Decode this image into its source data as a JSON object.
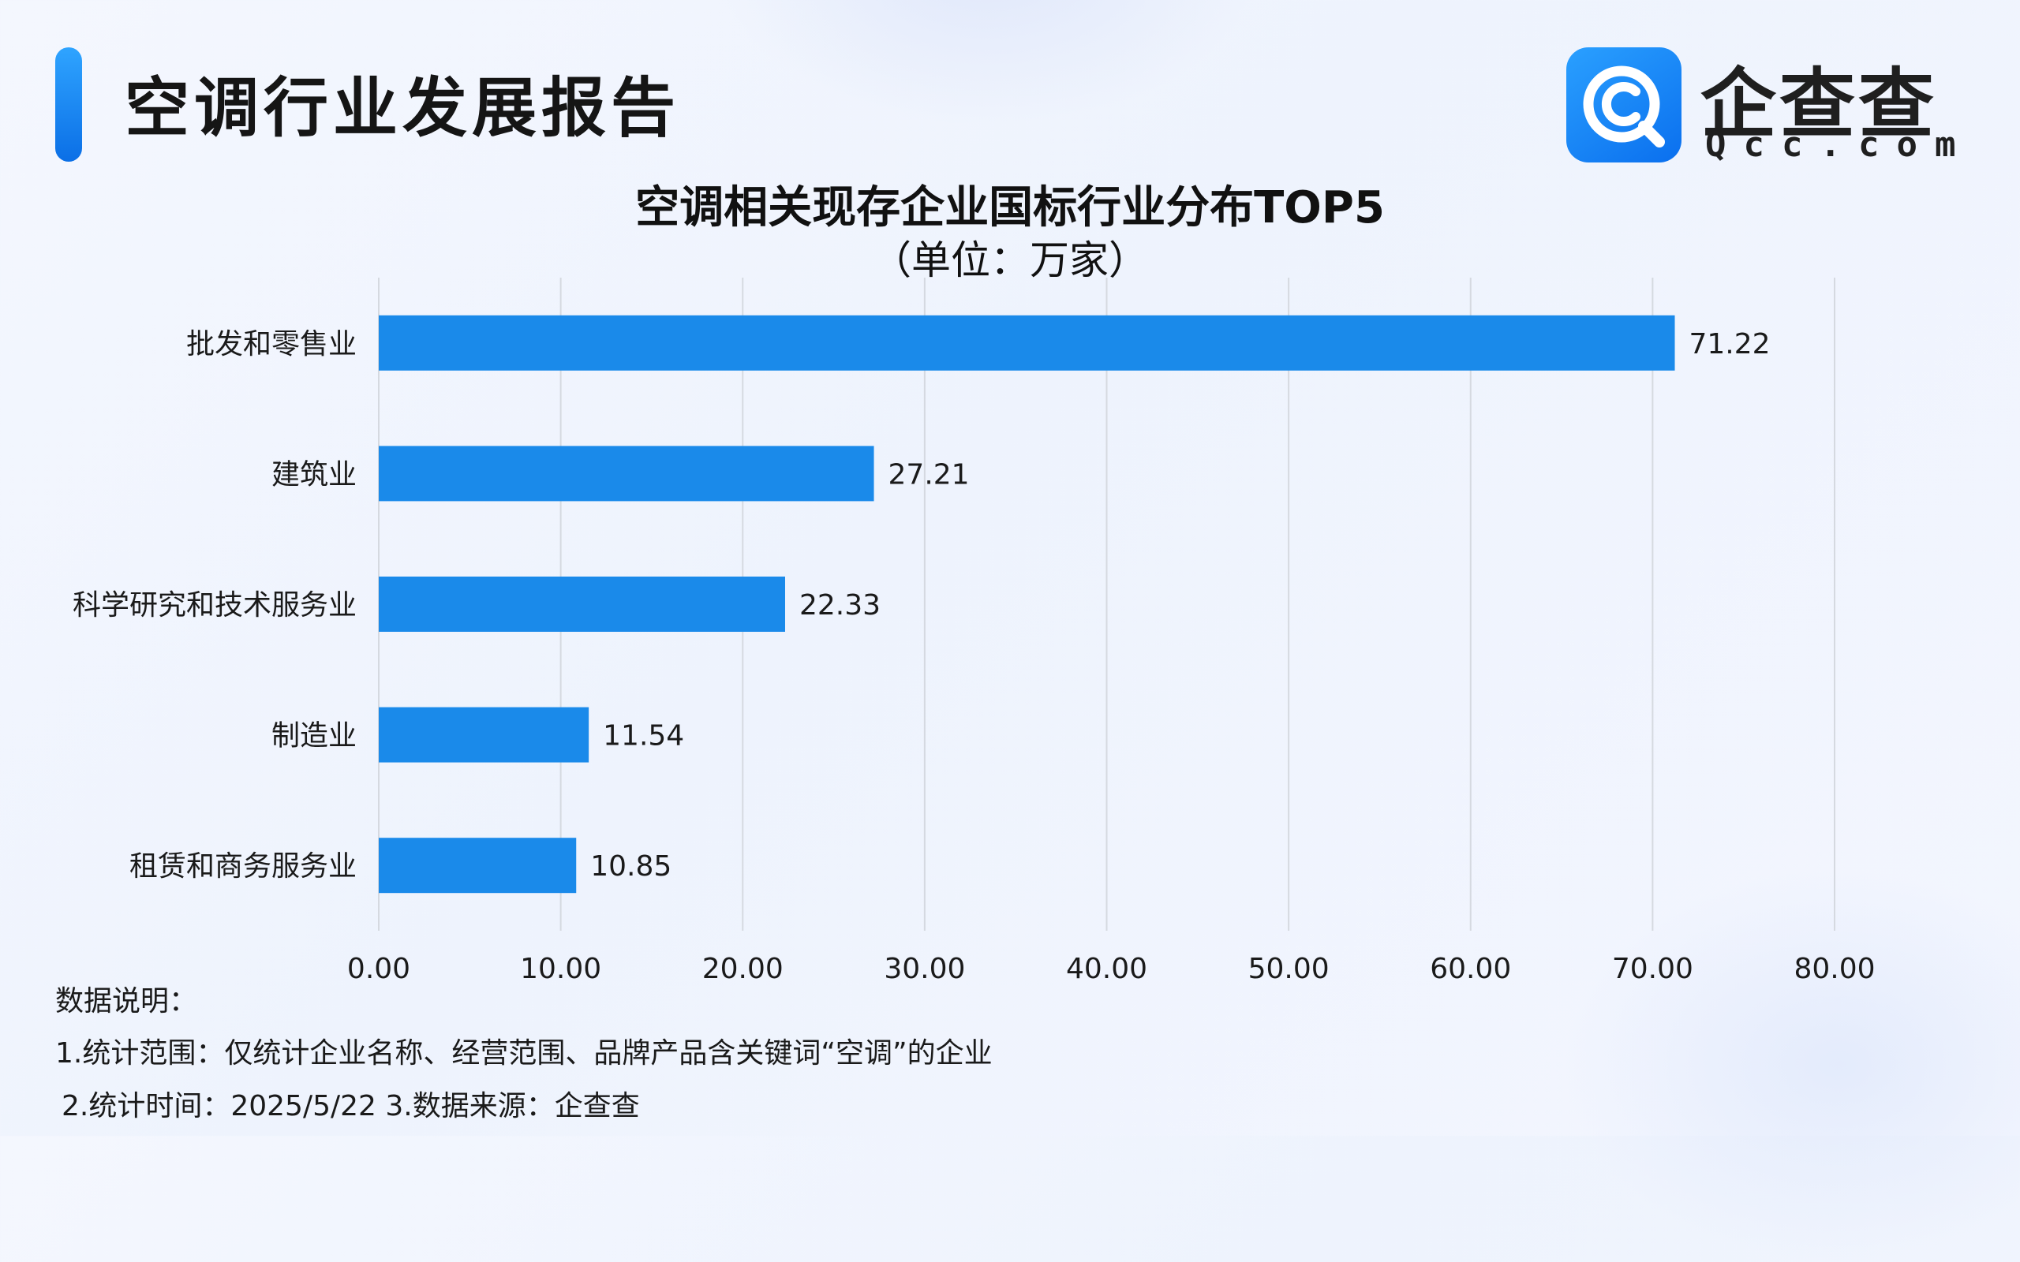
{
  "header": {
    "title": "空调行业发展报告"
  },
  "logo": {
    "name": "企查查",
    "domain": "Qcc.com",
    "colors": {
      "mark_start": "#2aa0ff",
      "mark_end": "#0a6fee"
    }
  },
  "chart_data": {
    "type": "bar",
    "orientation": "horizontal",
    "title": "空调相关现存企业国标行业分布TOP5",
    "subtitle": "（单位：万家）",
    "categories": [
      "批发和零售业",
      "建筑业",
      "科学研究和技术服务业",
      "制造业",
      "租赁和商务服务业"
    ],
    "values": [
      71.22,
      27.21,
      22.33,
      11.54,
      10.85
    ],
    "value_labels": [
      "71.22",
      "27.21",
      "22.33",
      "11.54",
      "10.85"
    ],
    "xlim": [
      0,
      80
    ],
    "x_ticks": [
      0,
      10,
      20,
      30,
      40,
      50,
      60,
      70,
      80
    ],
    "x_tick_labels": [
      "0.00",
      "10.00",
      "20.00",
      "30.00",
      "40.00",
      "50.00",
      "60.00",
      "70.00",
      "80.00"
    ],
    "grid": "vertical",
    "colors": {
      "bar": "#1a8aea",
      "grid": "#d5d9e0"
    }
  },
  "notes": {
    "heading": "数据说明：",
    "line1": "1.统计范围：仅统计企业名称、经营范围、品牌产品含关键词“空调”的企业",
    "line2": "2.统计时间：2025/5/22    3.数据来源：企查查"
  }
}
